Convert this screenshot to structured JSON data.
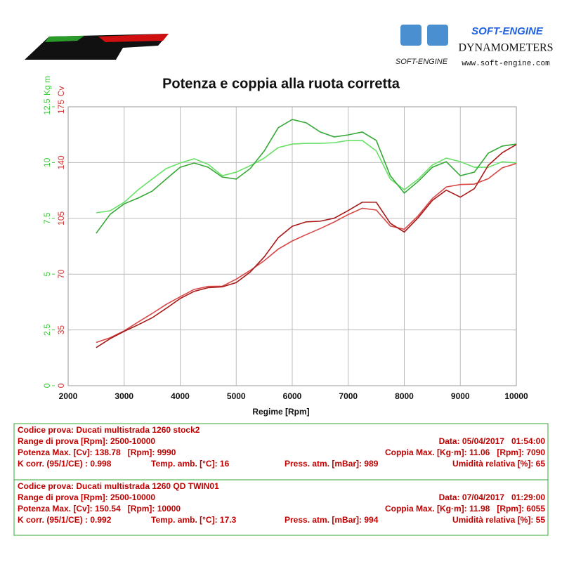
{
  "header": {
    "brand": "SOFT-ENGINE",
    "subtitle": "DYNAMOMETERS",
    "small_logo": "SOFT-ENGINE",
    "website": "www.soft-engine.com"
  },
  "chart_data": {
    "type": "line",
    "title": "Potenza e coppia alla ruota corretta",
    "x_label": "Regime [Rpm]",
    "y_label": "Cv",
    "y2_label": "Kg m",
    "y_color": "#d03030",
    "y2_color": "#3ccc3c",
    "xlim": [
      2000,
      10000
    ],
    "xticks": [
      2000,
      3000,
      4000,
      5000,
      6000,
      7000,
      8000,
      9000,
      10000
    ],
    "ylim": [
      0,
      175
    ],
    "yticks": [
      0,
      35,
      70,
      105,
      140,
      175
    ],
    "y2lim": [
      0,
      12.5
    ],
    "y2ticks": [
      0,
      2.5,
      5,
      7.5,
      10,
      12.5
    ],
    "grid": true,
    "x": [
      2500,
      2750,
      3000,
      3250,
      3500,
      3750,
      4000,
      4250,
      4500,
      4750,
      5000,
      5250,
      5500,
      5750,
      6000,
      6250,
      6500,
      6750,
      7000,
      7250,
      7500,
      7750,
      8000,
      8250,
      8500,
      8750,
      9000,
      9250,
      9500,
      9750,
      10000
    ],
    "series": [
      {
        "color": "#66e066",
        "axis": "y2",
        "values": [
          7.75,
          7.84,
          8.22,
          8.78,
          9.26,
          9.73,
          9.98,
          10.17,
          9.92,
          9.41,
          9.57,
          9.86,
          10.2,
          10.67,
          10.83,
          10.86,
          10.86,
          10.89,
          10.99,
          10.99,
          10.52,
          9.26,
          8.78,
          9.26,
          9.89,
          10.2,
          10.04,
          9.79,
          9.79,
          10.04,
          9.98
        ]
      },
      {
        "color": "#35a835",
        "axis": "y2",
        "values": [
          6.83,
          7.68,
          8.15,
          8.41,
          8.72,
          9.26,
          9.79,
          9.98,
          9.79,
          9.35,
          9.26,
          9.73,
          10.52,
          11.56,
          11.93,
          11.78,
          11.37,
          11.15,
          11.24,
          11.37,
          10.99,
          9.41,
          8.63,
          9.16,
          9.79,
          10.04,
          9.41,
          9.57,
          10.42,
          10.74,
          10.83
        ]
      },
      {
        "color": "#d84848",
        "values": [
          27.1,
          30.1,
          34.4,
          39.9,
          45.3,
          51.0,
          55.8,
          60.4,
          62.3,
          62.4,
          66.8,
          72.3,
          78.4,
          85.7,
          90.8,
          94.8,
          98.6,
          102.7,
          107.4,
          111.3,
          110.2,
          100.2,
          98.1,
          106.7,
          117.4,
          124.7,
          126.2,
          126.5,
          129.9,
          136.7,
          139.4
        ]
      },
      {
        "color": "#a81818",
        "values": [
          23.9,
          29.5,
          34.1,
          38.2,
          42.6,
          48.5,
          54.7,
          59.2,
          61.5,
          62.0,
          64.7,
          71.3,
          80.8,
          92.8,
          100.0,
          102.8,
          103.2,
          105.1,
          109.9,
          115.1,
          115.1,
          101.9,
          96.4,
          105.5,
          116.2,
          122.7,
          118.3,
          123.6,
          138.3,
          146.2,
          151.3
        ]
      }
    ]
  },
  "tests": [
    [
      [
        "Codice prova: Ducati multistrada 1260 stock2"
      ],
      [
        "Range di prova [Rpm]: 2500-10000",
        "Data: 05/04/2017   01:54:00"
      ],
      [
        "Potenza Max. [Cv]: 138.78   [Rpm]: 9990",
        "Coppia Max. [Kg·m]: 11.06   [Rpm]: 7090"
      ],
      [
        "K corr. (95/1/CE) : 0.998",
        "Temp. amb. [°C]: 16",
        "Press. atm. [mBar]: 989",
        "Umidità relativa [%]: 65"
      ]
    ],
    [
      [
        "Codice prova: Ducati multistrada 1260 QD TWIN01"
      ],
      [
        "Range di prova [Rpm]: 2500-10000",
        "Data: 07/04/2017   01:29:00"
      ],
      [
        "Potenza Max. [Cv]: 150.54   [Rpm]: 10000",
        "Coppia Max. [Kg·m]: 11.98   [Rpm]: 6055"
      ],
      [
        "K corr. (95/1/CE) : 0.992",
        "Temp. amb. [°C]: 17.3",
        "Press. atm. [mBar]: 994",
        "Umidità relativa [%]: 55"
      ]
    ]
  ]
}
